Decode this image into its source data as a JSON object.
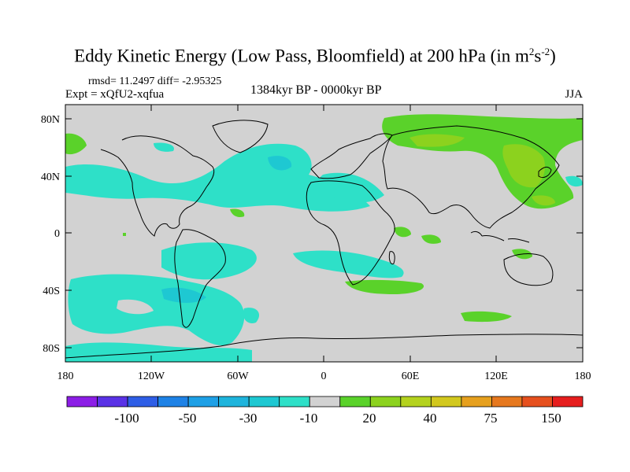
{
  "title": {
    "main": "Eddy Kinetic Energy (Low Pass, Bloomfield) at 200 hPa (in m",
    "sup1": "2",
    "mid": "s",
    "sup2": "-2",
    "end": ")"
  },
  "stats": "rmsd= 11.2497 diff= -2.95325",
  "experiment": "Expt = xQfU2-xqfua",
  "period": "1384kyr BP - 0000kyr BP",
  "season": "JJA",
  "y_ticks": [
    "80N",
    "40N",
    "0",
    "40S",
    "80S"
  ],
  "x_ticks": [
    "180",
    "120W",
    "60W",
    "0",
    "60E",
    "120E",
    "180"
  ],
  "colorbar": {
    "colors": [
      "#8c1ee6",
      "#5a32e6",
      "#2e5ee6",
      "#1e82e6",
      "#1ea0e6",
      "#1eb4dc",
      "#1ec8d2",
      "#2ee0c8",
      "#d2d2d2",
      "#5ad22a",
      "#8cd21e",
      "#b4d21e",
      "#d2c81e",
      "#e6a01e",
      "#e6781e",
      "#e6501e",
      "#e61e1e"
    ],
    "labels": [
      "-100",
      "-50",
      "-30",
      "-10",
      "20",
      "40",
      "75",
      "150"
    ]
  },
  "legend_colors": {
    "background": "#d2d2d2",
    "cyan": "#2ee0c8",
    "cyan_mid": "#1ec8d2",
    "green": "#5ad22a",
    "yellow_green": "#b4d21e"
  }
}
